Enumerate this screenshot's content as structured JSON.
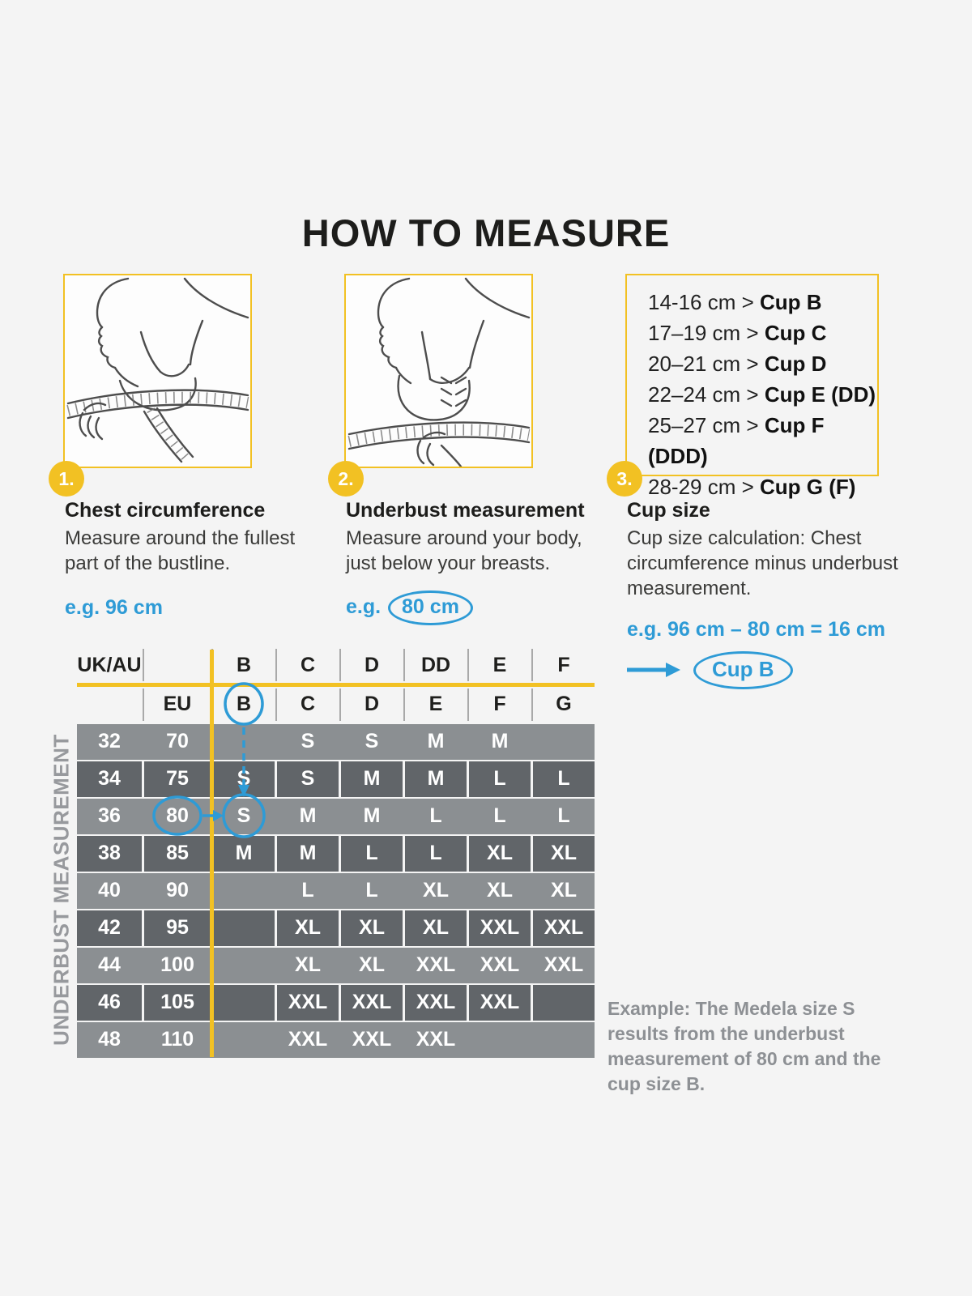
{
  "title": "HOW TO MEASURE",
  "colors": {
    "yellow": "#f2c123",
    "blue": "#2e9bd6",
    "table_row_light": "#8b8f92",
    "table_row_dark": "#616569",
    "note_gray": "#8d9094"
  },
  "steps": {
    "one": {
      "badge": "1.",
      "heading": "Chest circumference",
      "body": "Measure around the fullest part of the bustline.",
      "eg_prefix": "e.g.",
      "eg_value": "96 cm"
    },
    "two": {
      "badge": "2.",
      "heading": "Underbust measurement",
      "body": "Measure around your body, just below your breasts.",
      "eg_prefix": "e.g.",
      "eg_value": "80 cm"
    },
    "three": {
      "badge": "3.",
      "heading": "Cup size",
      "body": "Cup size calculation: Chest circumference minus underbust measurement.",
      "eg_line": "e.g. 96 cm – 80 cm = 16 cm",
      "result": "Cup B"
    }
  },
  "cup_rules": [
    {
      "range": "14-16 cm",
      "cup": "Cup B"
    },
    {
      "range": "17–19 cm",
      "cup": "Cup C"
    },
    {
      "range": "20–21 cm",
      "cup": "Cup D"
    },
    {
      "range": "22–24 cm",
      "cup": "Cup E (DD)"
    },
    {
      "range": "25–27 cm",
      "cup": "Cup F (DDD)"
    },
    {
      "range": "28-29 cm",
      "cup": "Cup G (F)"
    }
  ],
  "size_table": {
    "axis_label": "UNDERBUST MEASUREMENT",
    "header_row1": [
      "UK/AU",
      "",
      "B",
      "C",
      "D",
      "DD",
      "E",
      "F"
    ],
    "header_row2": [
      "",
      "EU",
      "B",
      "C",
      "D",
      "E",
      "F",
      "G"
    ],
    "rows": [
      {
        "ukau": "32",
        "eu": "70",
        "cells": [
          "",
          "S",
          "S",
          "M",
          "M",
          ""
        ]
      },
      {
        "ukau": "34",
        "eu": "75",
        "cells": [
          "S",
          "S",
          "M",
          "M",
          "L",
          "L"
        ]
      },
      {
        "ukau": "36",
        "eu": "80",
        "cells": [
          "S",
          "M",
          "M",
          "L",
          "L",
          "L"
        ]
      },
      {
        "ukau": "38",
        "eu": "85",
        "cells": [
          "M",
          "M",
          "L",
          "L",
          "XL",
          "XL"
        ]
      },
      {
        "ukau": "40",
        "eu": "90",
        "cells": [
          "",
          "L",
          "L",
          "XL",
          "XL",
          "XL"
        ]
      },
      {
        "ukau": "42",
        "eu": "95",
        "cells": [
          "",
          "XL",
          "XL",
          "XL",
          "XXL",
          "XXL"
        ]
      },
      {
        "ukau": "44",
        "eu": "100",
        "cells": [
          "",
          "XL",
          "XL",
          "XXL",
          "XXL",
          "XXL"
        ]
      },
      {
        "ukau": "46",
        "eu": "105",
        "cells": [
          "",
          "XXL",
          "XXL",
          "XXL",
          "XXL",
          ""
        ]
      },
      {
        "ukau": "48",
        "eu": "110",
        "cells": [
          "",
          "XXL",
          "XXL",
          "XXL",
          "",
          ""
        ]
      }
    ],
    "highlight": {
      "header_circle": "B",
      "row_circle_eu": "80",
      "result_cell": "S"
    }
  },
  "note": "Example: The Medela size S results from the underbust measurement of 80 cm and the cup size B.",
  "icons": {
    "result_arrow": "right-arrow",
    "drop_arrow": "down-arrow"
  }
}
